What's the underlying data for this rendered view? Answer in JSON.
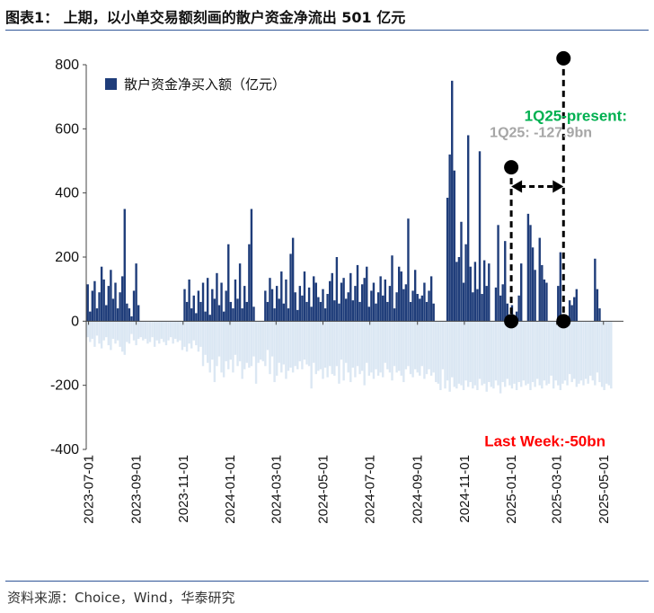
{
  "title": "图表1：   上期，以小单交易额刻画的散户资金净流出 501 亿元",
  "source": "资料来源：Choice，Wind，华泰研究",
  "chart_data": {
    "type": "bar",
    "legend": "散户资金净买入额（亿元）",
    "legend_position": "top-left",
    "ylim": [
      -400,
      800
    ],
    "yticks": [
      -400,
      -200,
      0,
      200,
      400,
      600,
      800
    ],
    "xlim": [
      "2023-06-28",
      "2025-05-27"
    ],
    "xticks": [
      "2023-07-01",
      "2023-09-01",
      "2023-11-01",
      "2024-01-01",
      "2024-03-01",
      "2024-05-01",
      "2024-07-01",
      "2024-09-01",
      "2024-11-01",
      "2025-01-01",
      "2025-03-01",
      "2025-05-01"
    ],
    "grid": false,
    "colors": {
      "inflow": "#1f3d7a",
      "outflow": "#dbe7f3",
      "annotation_green": "#00b050",
      "annotation_gray": "#a6a6a6",
      "annotation_red": "#ff0000"
    },
    "series": [
      {
        "name": "散户资金净买入额（亿元）",
        "dates": [
          "2023-06-30",
          "2023-07-03",
          "2023-07-06",
          "2023-07-09",
          "2023-07-12",
          "2023-07-15",
          "2023-07-18",
          "2023-07-21",
          "2023-07-24",
          "2023-07-27",
          "2023-07-30",
          "2023-08-02",
          "2023-08-05",
          "2023-08-08",
          "2023-08-11",
          "2023-08-14",
          "2023-08-17",
          "2023-08-20",
          "2023-08-23",
          "2023-08-26",
          "2023-08-29",
          "2023-09-01",
          "2023-09-04",
          "2023-09-07",
          "2023-09-10",
          "2023-09-13",
          "2023-09-16",
          "2023-09-19",
          "2023-09-22",
          "2023-09-25",
          "2023-09-28",
          "2023-10-01",
          "2023-10-04",
          "2023-10-07",
          "2023-10-10",
          "2023-10-13",
          "2023-10-16",
          "2023-10-19",
          "2023-10-22",
          "2023-10-25",
          "2023-10-28",
          "2023-10-31",
          "2023-11-03",
          "2023-11-06",
          "2023-11-09",
          "2023-11-12",
          "2023-11-15",
          "2023-11-18",
          "2023-11-21",
          "2023-11-24",
          "2023-11-27",
          "2023-11-30",
          "2023-12-03",
          "2023-12-06",
          "2023-12-09",
          "2023-12-12",
          "2023-12-15",
          "2023-12-18",
          "2023-12-21",
          "2023-12-24",
          "2023-12-27",
          "2023-12-30",
          "2024-01-02",
          "2024-01-05",
          "2024-01-08",
          "2024-01-11",
          "2024-01-14",
          "2024-01-17",
          "2024-01-20",
          "2024-01-23",
          "2024-01-26",
          "2024-01-29",
          "2024-02-01",
          "2024-02-04",
          "2024-02-07",
          "2024-02-10",
          "2024-02-13",
          "2024-02-16",
          "2024-02-19",
          "2024-02-22",
          "2024-02-25",
          "2024-02-28",
          "2024-03-02",
          "2024-03-05",
          "2024-03-08",
          "2024-03-11",
          "2024-03-14",
          "2024-03-17",
          "2024-03-20",
          "2024-03-23",
          "2024-03-26",
          "2024-03-29",
          "2024-04-01",
          "2024-04-04",
          "2024-04-07",
          "2024-04-10",
          "2024-04-13",
          "2024-04-16",
          "2024-04-19",
          "2024-04-22",
          "2024-04-25",
          "2024-04-28",
          "2024-05-01",
          "2024-05-04",
          "2024-05-07",
          "2024-05-10",
          "2024-05-13",
          "2024-05-16",
          "2024-05-19",
          "2024-05-22",
          "2024-05-25",
          "2024-05-28",
          "2024-05-31",
          "2024-06-03",
          "2024-06-06",
          "2024-06-09",
          "2024-06-12",
          "2024-06-15",
          "2024-06-18",
          "2024-06-21",
          "2024-06-24",
          "2024-06-27",
          "2024-06-30",
          "2024-07-03",
          "2024-07-06",
          "2024-07-09",
          "2024-07-12",
          "2024-07-15",
          "2024-07-18",
          "2024-07-21",
          "2024-07-24",
          "2024-07-27",
          "2024-07-30",
          "2024-08-02",
          "2024-08-05",
          "2024-08-08",
          "2024-08-11",
          "2024-08-14",
          "2024-08-17",
          "2024-08-20",
          "2024-08-23",
          "2024-08-26",
          "2024-08-29",
          "2024-09-01",
          "2024-09-04",
          "2024-09-07",
          "2024-09-10",
          "2024-09-13",
          "2024-09-16",
          "2024-09-19",
          "2024-09-22",
          "2024-09-25",
          "2024-09-28",
          "2024-10-01",
          "2024-10-04",
          "2024-10-07",
          "2024-10-10",
          "2024-10-13",
          "2024-10-16",
          "2024-10-19",
          "2024-10-22",
          "2024-10-25",
          "2024-10-28",
          "2024-10-31",
          "2024-11-03",
          "2024-11-06",
          "2024-11-09",
          "2024-11-12",
          "2024-11-15",
          "2024-11-18",
          "2024-11-21",
          "2024-11-24",
          "2024-11-27",
          "2024-11-30",
          "2024-12-03",
          "2024-12-06",
          "2024-12-09",
          "2024-12-12",
          "2024-12-15",
          "2024-12-18",
          "2024-12-21",
          "2024-12-24",
          "2024-12-27",
          "2024-12-30",
          "2025-01-02",
          "2025-01-05",
          "2025-01-08",
          "2025-01-11",
          "2025-01-14",
          "2025-01-17",
          "2025-01-20",
          "2025-01-23",
          "2025-01-26",
          "2025-01-29",
          "2025-02-01",
          "2025-02-04",
          "2025-02-07",
          "2025-02-10",
          "2025-02-13",
          "2025-02-16",
          "2025-02-19",
          "2025-02-22",
          "2025-02-25",
          "2025-02-28",
          "2025-03-03",
          "2025-03-06",
          "2025-03-09",
          "2025-03-12",
          "2025-03-15",
          "2025-03-18",
          "2025-03-21",
          "2025-03-24",
          "2025-03-27",
          "2025-03-30",
          "2025-04-02",
          "2025-04-05",
          "2025-04-08",
          "2025-04-11",
          "2025-04-14",
          "2025-04-17",
          "2025-04-20",
          "2025-04-23",
          "2025-04-26",
          "2025-04-29",
          "2025-05-02",
          "2025-05-05",
          "2025-05-08",
          "2025-05-11",
          "2025-05-14",
          "2025-05-17",
          "2025-05-20",
          "2025-05-23"
        ],
        "inflow": [
          115,
          30,
          95,
          125,
          40,
          90,
          170,
          130,
          50,
          110,
          160,
          70,
          120,
          40,
          90,
          140,
          350,
          55,
          40,
          15,
          95,
          180,
          50,
          0,
          0,
          0,
          0,
          0,
          0,
          0,
          0,
          0,
          0,
          0,
          0,
          0,
          0,
          0,
          0,
          0,
          0,
          0,
          100,
          60,
          130,
          40,
          80,
          25,
          95,
          60,
          120,
          30,
          135,
          20,
          100,
          70,
          150,
          50,
          120,
          30,
          95,
          240,
          60,
          40,
          130,
          70,
          180,
          40,
          110,
          60,
          240,
          350,
          45,
          0,
          0,
          0,
          0,
          95,
          60,
          135,
          100,
          40,
          110,
          70,
          155,
          55,
          130,
          40,
          210,
          260,
          90,
          35,
          110,
          80,
          155,
          60,
          105,
          45,
          140,
          120,
          75,
          60,
          100,
          40,
          85,
          125,
          150,
          65,
          200,
          55,
          120,
          135,
          70,
          90,
          150,
          65,
          110,
          175,
          60,
          115,
          135,
          170,
          45,
          95,
          120,
          55,
          90,
          140,
          80,
          130,
          60,
          110,
          205,
          40,
          90,
          170,
          155,
          100,
          115,
          320,
          60,
          95,
          160,
          85,
          70,
          80,
          120,
          60,
          95,
          140,
          55,
          0,
          0,
          0,
          0,
          0,
          385,
          520,
          750,
          470,
          185,
          200,
          310,
          120,
          240,
          580,
          170,
          90,
          185,
          100,
          530,
          85,
          190,
          110,
          180,
          0,
          0,
          105,
          300,
          80,
          115,
          250,
          55,
          0,
          50,
          0,
          30,
          80,
          180,
          0,
          0,
          335,
          300,
          230,
          160,
          0,
          260,
          175,
          130,
          120,
          0,
          0,
          0,
          0,
          110,
          215,
          0,
          0,
          0,
          65,
          50,
          75,
          100,
          0,
          0,
          0,
          0,
          0,
          0,
          0,
          195,
          100,
          40,
          0
        ],
        "outflow": [
          -50,
          -65,
          -55,
          -80,
          -45,
          -70,
          -85,
          -60,
          -50,
          -75,
          -90,
          -55,
          -70,
          -60,
          -80,
          -95,
          -105,
          -65,
          -70,
          -40,
          -60,
          -75,
          -55,
          -50,
          -60,
          -55,
          -70,
          -65,
          -50,
          -80,
          -60,
          -70,
          -55,
          -65,
          -75,
          -60,
          -50,
          -70,
          -55,
          -65,
          -60,
          -90,
          -80,
          -95,
          -70,
          -85,
          -60,
          -75,
          -95,
          -80,
          -140,
          -105,
          -130,
          -160,
          -120,
          -190,
          -140,
          -110,
          -160,
          -175,
          -125,
          -150,
          -120,
          -160,
          -105,
          -140,
          -125,
          -180,
          -150,
          -130,
          -145,
          -140,
          -110,
          -195,
          -130,
          -120,
          -125,
          -140,
          -90,
          -165,
          -110,
          -190,
          -170,
          -130,
          -160,
          -135,
          -180,
          -155,
          -145,
          -160,
          -140,
          -150,
          -125,
          -150,
          -120,
          -135,
          -140,
          -210,
          -130,
          -165,
          -155,
          -150,
          -180,
          -145,
          -175,
          -140,
          -165,
          -170,
          -140,
          -195,
          -120,
          -185,
          -130,
          -160,
          -190,
          -145,
          -175,
          -140,
          -165,
          -155,
          -200,
          -130,
          -170,
          -160,
          -180,
          -150,
          -170,
          -160,
          -175,
          -130,
          -150,
          -160,
          -185,
          -140,
          -160,
          -155,
          -170,
          -190,
          -150,
          -140,
          -165,
          -175,
          -150,
          -160,
          -170,
          -140,
          -180,
          -165,
          -150,
          -170,
          -160,
          -190,
          -195,
          -215,
          -150,
          -210,
          -185,
          -220,
          -175,
          -205,
          -210,
          -195,
          -200,
          -215,
          -185,
          -205,
          -190,
          -210,
          -200,
          -215,
          -180,
          -200,
          -195,
          -220,
          -190,
          -205,
          -210,
          -185,
          -200,
          -225,
          -190,
          -205,
          -180,
          -200,
          -210,
          -195,
          -215,
          -190,
          -205,
          -185,
          -200,
          -195,
          -215,
          -190,
          -205,
          -180,
          -200,
          -210,
          -185,
          -200,
          -195,
          -170,
          -210,
          -185,
          -200,
          -215,
          -195,
          -185,
          -200,
          -165,
          -190,
          -180,
          -205,
          -195,
          -185,
          -200,
          -180,
          -195,
          -170,
          -185,
          -200,
          -160,
          -190,
          -205,
          -215,
          -195,
          -200,
          -210
        ]
      }
    ],
    "annotations": {
      "q1_label": "1Q25-present:",
      "q1_value": "1Q25: -127.9bn",
      "last_week": "Last Week:-50bn",
      "range_start": "2025-01-01",
      "range_end": "2025-03-10",
      "top_marker_value": 820,
      "mid_marker_value": 480,
      "arrow_value": 420
    }
  }
}
